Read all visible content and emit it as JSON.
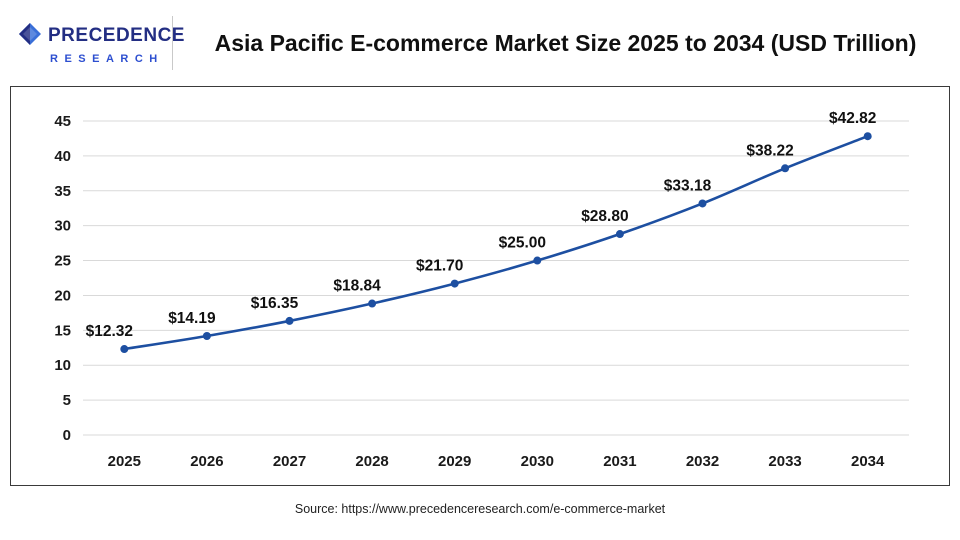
{
  "logo": {
    "line1": "PRECEDENCE",
    "line2": "RESEARCH",
    "diamond_dark": "#232e83",
    "diamond_light": "#3a6fd8"
  },
  "header": {
    "title": "Asia Pacific E-commerce Market Size 2025 to 2034 (USD Trillion)"
  },
  "footer": {
    "source": "Source: https://www.precedenceresearch.com/e-commerce-market"
  },
  "chart_data": {
    "type": "line",
    "title": "Asia Pacific E-commerce Market Size 2025 to 2034 (USD Trillion)",
    "categories": [
      "2025",
      "2026",
      "2027",
      "2028",
      "2029",
      "2030",
      "2031",
      "2032",
      "2033",
      "2034"
    ],
    "values": [
      12.32,
      14.19,
      16.35,
      18.84,
      21.7,
      25.0,
      28.8,
      33.18,
      38.22,
      42.82
    ],
    "point_labels": [
      "$12.32",
      "$14.19",
      "$16.35",
      "$18.84",
      "$21.70",
      "$25.00",
      "$28.80",
      "$33.18",
      "$38.22",
      "$42.82"
    ],
    "xlabel": "",
    "ylabel": "",
    "ylim": [
      0,
      45
    ],
    "yticks": [
      0,
      5,
      10,
      15,
      20,
      25,
      30,
      35,
      40,
      45
    ],
    "grid": true,
    "legend_position": "none",
    "line_color": "#1d4fa1",
    "point_color": "#1d4fa1",
    "grid_color": "#d9d9d9",
    "tick_label_color": "#1a1a1a",
    "data_label_color": "#111111"
  }
}
